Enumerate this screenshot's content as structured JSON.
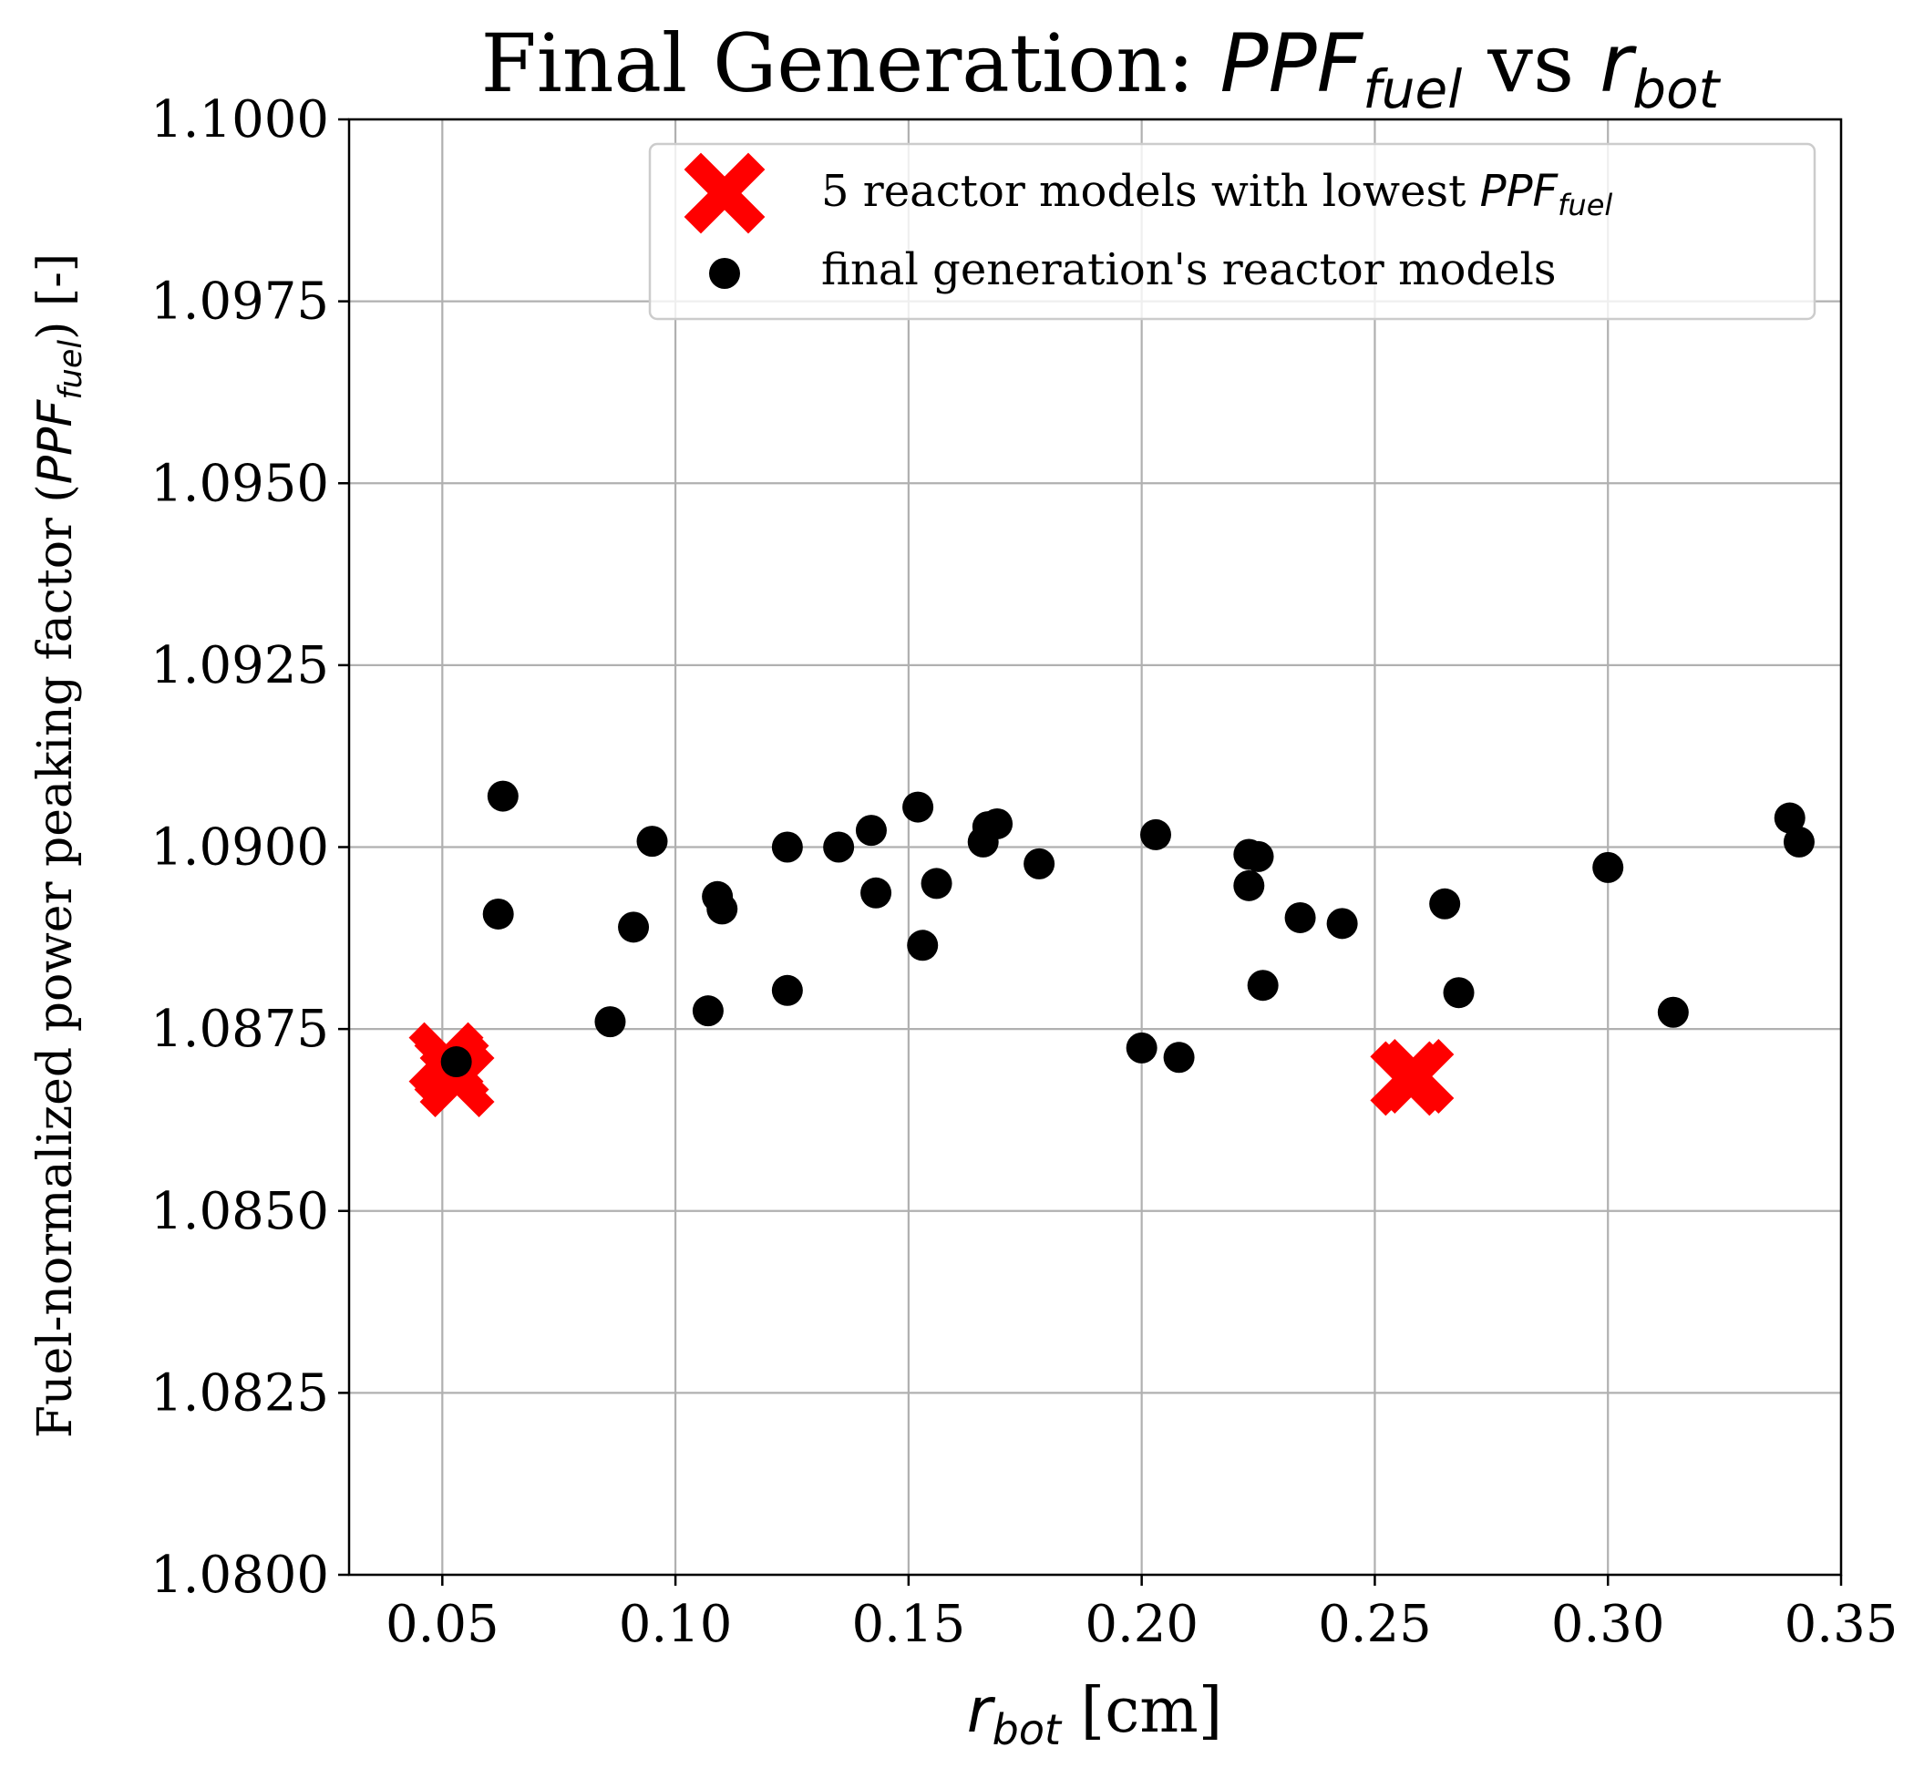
{
  "chart_data": {
    "type": "scatter",
    "title": {
      "prefix": "Final Generation: ",
      "y_symbol": "PPF",
      "y_sub": "fuel",
      "middle": " vs ",
      "x_symbol": "r",
      "x_sub": "bot"
    },
    "xlabel": {
      "symbol": "r",
      "sub": "bot",
      "unit": " [cm]"
    },
    "ylabel": {
      "prefix": "Fuel-normalized power peaking factor (",
      "symbol": "PPF",
      "sub": "fuel",
      "suffix": ") [-]"
    },
    "xlim": [
      0.03,
      0.35
    ],
    "ylim": [
      1.08,
      1.1
    ],
    "xticks": [
      "0.05",
      "0.10",
      "0.15",
      "0.20",
      "0.25",
      "0.30",
      "0.35"
    ],
    "yticks": [
      "1.0800",
      "1.0825",
      "1.0850",
      "1.0875",
      "1.0900",
      "1.0925",
      "1.0950",
      "1.0975",
      "1.1000"
    ],
    "grid": true,
    "legend_position": "top-right",
    "series": [
      {
        "name": "final generation's reactor models",
        "legend_text": "final generation's reactor models",
        "marker": "circle",
        "color": "#000000",
        "points": [
          [
            0.053,
            1.08705
          ],
          [
            0.062,
            1.08908
          ],
          [
            0.063,
            1.0907
          ],
          [
            0.086,
            1.0876
          ],
          [
            0.091,
            1.0889
          ],
          [
            0.095,
            1.09008
          ],
          [
            0.107,
            1.08775
          ],
          [
            0.109,
            1.08932
          ],
          [
            0.11,
            1.08915
          ],
          [
            0.124,
            1.09
          ],
          [
            0.124,
            1.08803
          ],
          [
            0.135,
            1.09
          ],
          [
            0.142,
            1.09023
          ],
          [
            0.143,
            1.08937
          ],
          [
            0.152,
            1.09055
          ],
          [
            0.153,
            1.08865
          ],
          [
            0.156,
            1.0895
          ],
          [
            0.166,
            1.09007
          ],
          [
            0.167,
            1.09028
          ],
          [
            0.169,
            1.09032
          ],
          [
            0.178,
            1.08977
          ],
          [
            0.2,
            1.08724
          ],
          [
            0.203,
            1.09017
          ],
          [
            0.208,
            1.08711
          ],
          [
            0.223,
            1.0899
          ],
          [
            0.223,
            1.08947
          ],
          [
            0.225,
            1.08987
          ],
          [
            0.226,
            1.0881
          ],
          [
            0.234,
            1.08903
          ],
          [
            0.243,
            1.08895
          ],
          [
            0.265,
            1.08922
          ],
          [
            0.268,
            1.088
          ],
          [
            0.3,
            1.08972
          ],
          [
            0.314,
            1.08773
          ],
          [
            0.339,
            1.0904
          ],
          [
            0.341,
            1.09007
          ]
        ]
      },
      {
        "name": "5 reactor models with lowest PPF_fuel",
        "legend_prefix": "5 reactor models with lowest ",
        "legend_symbol": "PPF",
        "legend_sub": "fuel",
        "marker": "x",
        "color": "#ff0000",
        "points": [
          [
            0.052,
            1.08693
          ],
          [
            0.052,
            1.08695
          ],
          [
            0.052,
            1.08697
          ],
          [
            0.258,
            1.08682
          ],
          [
            0.258,
            1.08685
          ]
        ]
      }
    ]
  }
}
